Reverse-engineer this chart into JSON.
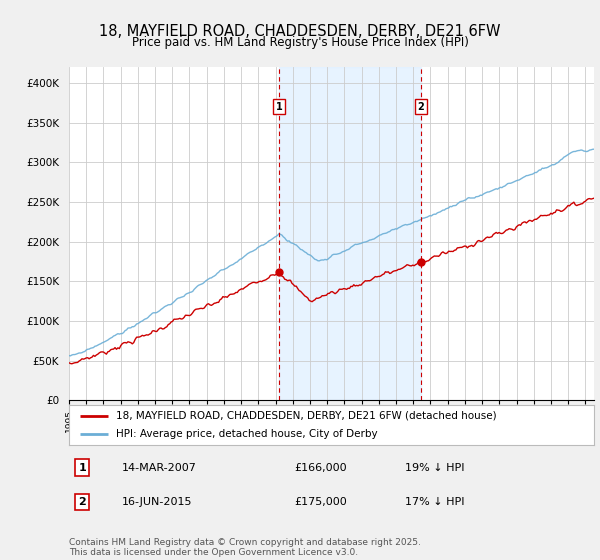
{
  "title": "18, MAYFIELD ROAD, CHADDESDEN, DERBY, DE21 6FW",
  "subtitle": "Price paid vs. HM Land Registry's House Price Index (HPI)",
  "ylim": [
    0,
    420000
  ],
  "yticks": [
    0,
    50000,
    100000,
    150000,
    200000,
    250000,
    300000,
    350000,
    400000
  ],
  "ytick_labels": [
    "£0",
    "£50K",
    "£100K",
    "£150K",
    "£200K",
    "£250K",
    "£300K",
    "£350K",
    "£400K"
  ],
  "sale1_date_num": 2007.19,
  "sale1_price": 166000,
  "sale2_date_num": 2015.45,
  "sale2_price": 175000,
  "sale1_date_str": "14-MAR-2007",
  "sale1_pct": "19% ↓ HPI",
  "sale2_date_str": "16-JUN-2015",
  "sale2_pct": "17% ↓ HPI",
  "hpi_color": "#6baed6",
  "price_color": "#cc0000",
  "shade_color": "#ddeeff",
  "legend_label_price": "18, MAYFIELD ROAD, CHADDESDEN, DERBY, DE21 6FW (detached house)",
  "legend_label_hpi": "HPI: Average price, detached house, City of Derby",
  "footnote": "Contains HM Land Registry data © Crown copyright and database right 2025.\nThis data is licensed under the Open Government Licence v3.0.",
  "bg_color": "#f0f0f0",
  "plot_bg_color": "#ffffff"
}
